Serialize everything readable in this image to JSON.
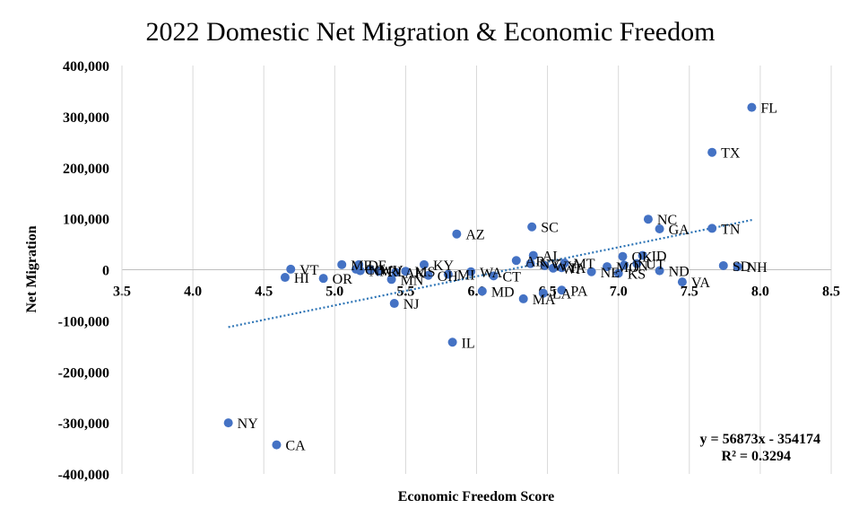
{
  "chart_data": {
    "type": "scatter",
    "title": "2022 Domestic Net Migration & Economic Freedom",
    "xlabel": "Economic Freedom Score",
    "ylabel": "Net Migration",
    "xlim": [
      3.5,
      8.5
    ],
    "ylim": [
      -400000,
      400000
    ],
    "x_ticks": [
      "3.5",
      "4.0",
      "4.5",
      "5.0",
      "5.5",
      "6.0",
      "6.5",
      "7.0",
      "7.5",
      "8.0",
      "8.5"
    ],
    "y_ticks": [
      "400,000",
      "300,000",
      "200,000",
      "100,000",
      "0",
      "-100,000",
      "-200,000",
      "-300,000",
      "-400,000"
    ],
    "grid": "vertical",
    "marker_color": "#4472c4",
    "trendline": {
      "type": "linear",
      "slope": 56873,
      "intercept": -354174,
      "x_range": [
        4.25,
        7.95
      ],
      "color": "#2e75b6",
      "equation": "y = 56873x - 354174",
      "r_squared": "R² = 0.3294"
    },
    "points": [
      {
        "label": "FL",
        "x": 7.94,
        "y": 318000
      },
      {
        "label": "TX",
        "x": 7.66,
        "y": 230000
      },
      {
        "label": "NC",
        "x": 7.21,
        "y": 99000
      },
      {
        "label": "GA",
        "x": 7.29,
        "y": 80000
      },
      {
        "label": "TN",
        "x": 7.66,
        "y": 81000
      },
      {
        "label": "SC",
        "x": 6.39,
        "y": 84000
      },
      {
        "label": "AZ",
        "x": 5.86,
        "y": 70000
      },
      {
        "label": "ID",
        "x": 7.17,
        "y": 28000
      },
      {
        "label": "OK",
        "x": 7.03,
        "y": 26000
      },
      {
        "label": "UT",
        "x": 7.13,
        "y": 12000
      },
      {
        "label": "IN",
        "x": 7.04,
        "y": 9000
      },
      {
        "label": "MO",
        "x": 6.92,
        "y": 6000
      },
      {
        "label": "SD",
        "x": 7.74,
        "y": 8000
      },
      {
        "label": "NH",
        "x": 7.84,
        "y": 6000
      },
      {
        "label": "ND",
        "x": 7.29,
        "y": -2000
      },
      {
        "label": "VA",
        "x": 7.45,
        "y": -24000
      },
      {
        "label": "KS",
        "x": 7.0,
        "y": -7000
      },
      {
        "label": "NE",
        "x": 6.81,
        "y": -4000
      },
      {
        "label": "MT",
        "x": 6.62,
        "y": 13000
      },
      {
        "label": "AL",
        "x": 6.4,
        "y": 28000
      },
      {
        "label": "AR",
        "x": 6.28,
        "y": 18000
      },
      {
        "label": "NV",
        "x": 6.38,
        "y": 12000
      },
      {
        "label": "WY",
        "x": 6.48,
        "y": 8000
      },
      {
        "label": "WI",
        "x": 6.54,
        "y": 3000
      },
      {
        "label": "IA",
        "x": 6.6,
        "y": 4000
      },
      {
        "label": "PA",
        "x": 6.6,
        "y": -40000
      },
      {
        "label": "LA",
        "x": 6.47,
        "y": -46000
      },
      {
        "label": "MA",
        "x": 6.33,
        "y": -57000
      },
      {
        "label": "MD",
        "x": 6.04,
        "y": -42000
      },
      {
        "label": "CT",
        "x": 6.12,
        "y": -12000
      },
      {
        "label": "WA",
        "x": 5.96,
        "y": -4000
      },
      {
        "label": "MI",
        "x": 5.8,
        "y": -9000
      },
      {
        "label": "OH",
        "x": 5.66,
        "y": -11000
      },
      {
        "label": "KY",
        "x": 5.63,
        "y": 10000
      },
      {
        "label": "MS",
        "x": 5.5,
        "y": -3000
      },
      {
        "label": "AK",
        "x": 5.43,
        "y": -5000
      },
      {
        "label": "MN",
        "x": 5.4,
        "y": -19000
      },
      {
        "label": "NJ",
        "x": 5.42,
        "y": -66000
      },
      {
        "label": "IL",
        "x": 5.83,
        "y": -142000
      },
      {
        "label": "RI",
        "x": 5.31,
        "y": -3000
      },
      {
        "label": "WV",
        "x": 5.25,
        "y": 0
      },
      {
        "label": "NM",
        "x": 5.18,
        "y": -2000
      },
      {
        "label": "DE",
        "x": 5.17,
        "y": 10000
      },
      {
        "label": "ME",
        "x": 5.05,
        "y": 10000
      },
      {
        "label": "CO",
        "x": 5.15,
        "y": 1000
      },
      {
        "label": "OR",
        "x": 4.92,
        "y": -17000
      },
      {
        "label": "VT",
        "x": 4.69,
        "y": 1000
      },
      {
        "label": "HI",
        "x": 4.65,
        "y": -15000
      },
      {
        "label": "NY",
        "x": 4.25,
        "y": -300000
      },
      {
        "label": "CA",
        "x": 4.59,
        "y": -343000
      }
    ]
  }
}
